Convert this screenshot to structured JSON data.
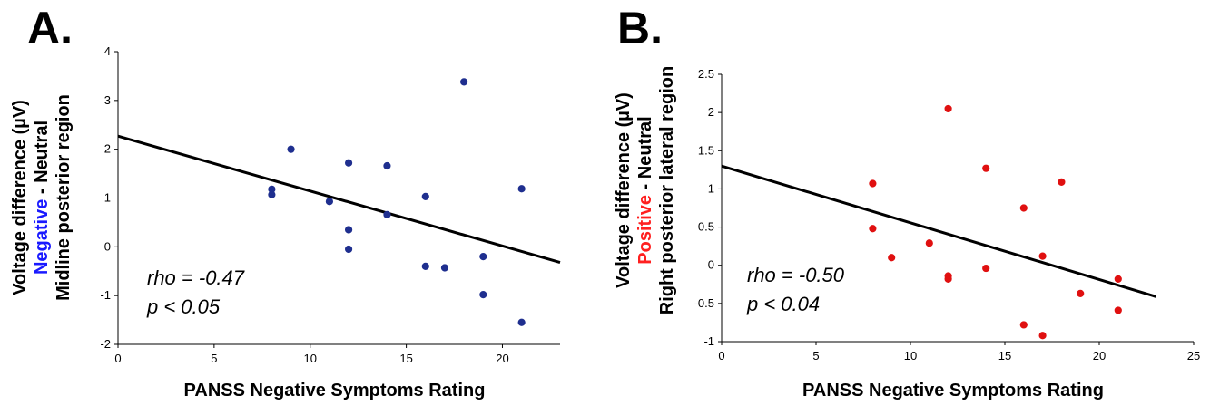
{
  "chart_data": [
    {
      "type": "scatter",
      "panel_label": "A.",
      "xlabel": "PANSS Negative Symptoms Rating",
      "ylabel_lines": [
        [
          {
            "text": "Voltage difference (µV)",
            "color": "#000000"
          }
        ],
        [
          {
            "text": "Negative",
            "color": "#1a1aff"
          },
          {
            "text": " - Neutral",
            "color": "#000000"
          }
        ],
        [
          {
            "text": "Midline posterior region",
            "color": "#000000"
          }
        ]
      ],
      "xlim": [
        0,
        23
      ],
      "ylim": [
        -2,
        4
      ],
      "xticks": [
        "0",
        "5",
        "10",
        "15",
        "20"
      ],
      "yticks": [
        "-2",
        "-1",
        "0",
        "1",
        "2",
        "3",
        "4"
      ],
      "grid": false,
      "point_color": "#1f2f8f",
      "series": [
        {
          "points": [
            [
              8,
              1.18
            ],
            [
              8,
              1.07
            ],
            [
              9,
              2.0
            ],
            [
              11,
              0.93
            ],
            [
              12,
              1.72
            ],
            [
              12,
              0.35
            ],
            [
              12,
              -0.05
            ],
            [
              14,
              1.66
            ],
            [
              14,
              0.66
            ],
            [
              16,
              1.03
            ],
            [
              16,
              -0.4
            ],
            [
              17,
              -0.43
            ],
            [
              18,
              3.38
            ],
            [
              19,
              -0.2
            ],
            [
              19,
              -0.98
            ],
            [
              21,
              1.19
            ],
            [
              21,
              -1.55
            ]
          ]
        }
      ],
      "trendline": {
        "x": [
          0,
          23
        ],
        "y": [
          2.27,
          -0.32
        ]
      },
      "annotations": [
        "rho = -0.47",
        "p < 0.05"
      ]
    },
    {
      "type": "scatter",
      "panel_label": "B.",
      "xlabel": "PANSS Negative Symptoms Rating",
      "ylabel_lines": [
        [
          {
            "text": "Voltage difference (µV)",
            "color": "#000000"
          }
        ],
        [
          {
            "text": "Positive",
            "color": "#ff2020"
          },
          {
            "text": " - Neutral",
            "color": "#000000"
          }
        ],
        [
          {
            "text": "Right posterior lateral region",
            "color": "#000000"
          }
        ]
      ],
      "xlim": [
        0,
        25
      ],
      "ylim": [
        -1,
        2.5
      ],
      "xticks": [
        "0",
        "5",
        "10",
        "15",
        "20",
        "25"
      ],
      "yticks": [
        "-1",
        "-0.5",
        "0",
        "0.5",
        "1",
        "1.5",
        "2",
        "2.5"
      ],
      "grid": false,
      "point_color": "#e01010",
      "series": [
        {
          "points": [
            [
              8,
              1.07
            ],
            [
              8,
              0.48
            ],
            [
              9,
              0.1
            ],
            [
              11,
              0.29
            ],
            [
              12,
              2.05
            ],
            [
              12,
              -0.14
            ],
            [
              12,
              -0.18
            ],
            [
              14,
              1.27
            ],
            [
              14,
              -0.04
            ],
            [
              16,
              0.75
            ],
            [
              16,
              -0.78
            ],
            [
              17,
              0.12
            ],
            [
              17,
              -0.92
            ],
            [
              18,
              1.09
            ],
            [
              19,
              -0.37
            ],
            [
              21,
              -0.18
            ],
            [
              21,
              -0.59
            ]
          ]
        }
      ],
      "trendline": {
        "x": [
          0,
          23
        ],
        "y": [
          1.3,
          -0.41
        ]
      },
      "annotations": [
        "rho = -0.50",
        "p < 0.04"
      ]
    }
  ]
}
